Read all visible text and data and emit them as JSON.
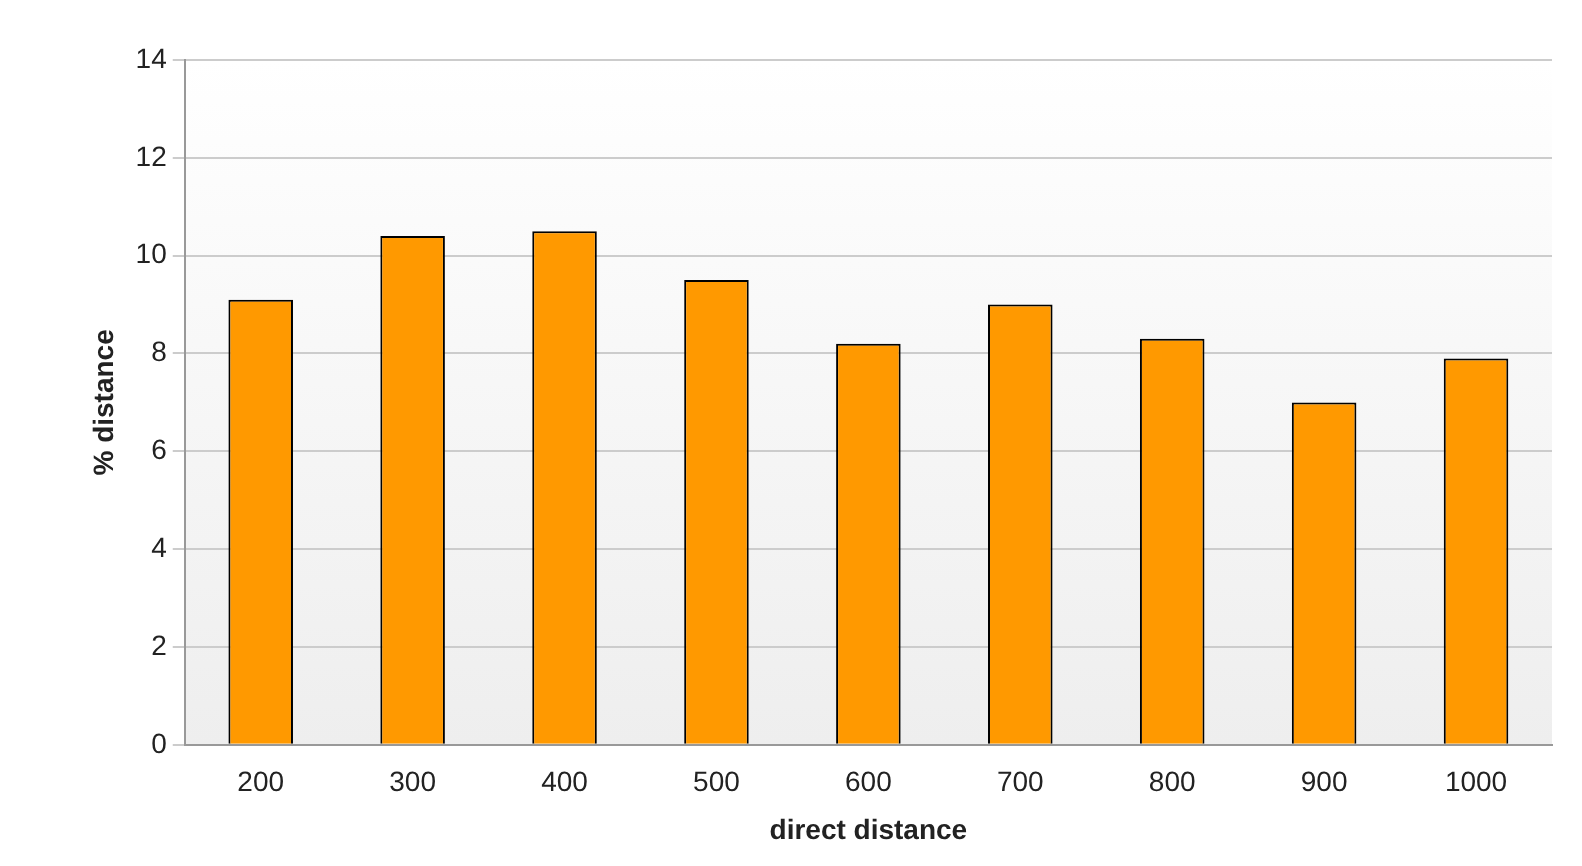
{
  "chart_data": {
    "type": "bar",
    "xlabel": "direct distance",
    "ylabel": "% distance",
    "categories": [
      "200",
      "300",
      "400",
      "500",
      "600",
      "700",
      "800",
      "900",
      "1000"
    ],
    "values": [
      9.1,
      10.4,
      10.5,
      9.5,
      8.2,
      9.0,
      8.3,
      7.0,
      7.9
    ],
    "color": "#ff9900",
    "ylim": [
      0,
      14
    ],
    "yticks": [
      0,
      2,
      4,
      6,
      8,
      10,
      12,
      14
    ],
    "grid": "y",
    "legend": false
  }
}
